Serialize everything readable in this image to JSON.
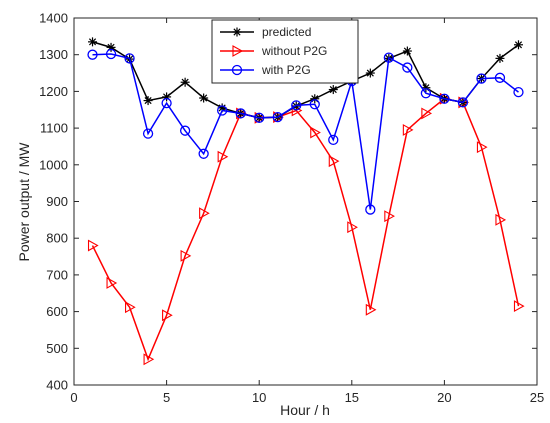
{
  "chart_data": {
    "type": "line",
    "title": "",
    "xlabel": "Hour / h",
    "ylabel": "Power output / MW",
    "xlim": [
      0,
      25
    ],
    "ylim": [
      400,
      1400
    ],
    "xticks": [
      0,
      5,
      10,
      15,
      20,
      25
    ],
    "yticks": [
      400,
      500,
      600,
      700,
      800,
      900,
      1000,
      1100,
      1200,
      1300,
      1400
    ],
    "grid": false,
    "legend_position": "top-center",
    "x": [
      1,
      2,
      3,
      4,
      5,
      6,
      7,
      8,
      9,
      10,
      11,
      12,
      13,
      14,
      15,
      16,
      17,
      18,
      19,
      20,
      21,
      22,
      23,
      24
    ],
    "series": [
      {
        "name": "predicted",
        "color": "#000000",
        "marker": "asterisk",
        "values": [
          1335,
          1320,
          1288,
          1175,
          1185,
          1225,
          1182,
          1155,
          1140,
          1128,
          1130,
          1160,
          1180,
          1205,
          1228,
          1250,
          1290,
          1310,
          1210,
          1180,
          1170,
          1235,
          1290,
          1327
        ]
      },
      {
        "name": "without P2G",
        "color": "#ff0000",
        "marker": "triangle-right",
        "values": [
          780,
          678,
          612,
          470,
          590,
          752,
          868,
          1022,
          1140,
          1128,
          1130,
          1148,
          1088,
          1010,
          830,
          605,
          860,
          1095,
          1140,
          1180,
          1170,
          1048,
          850,
          615
        ]
      },
      {
        "name": "with P2G",
        "color": "#0000ff",
        "marker": "circle",
        "values": [
          1300,
          1302,
          1290,
          1085,
          1168,
          1093,
          1030,
          1148,
          1140,
          1128,
          1130,
          1162,
          1165,
          1068,
          1228,
          878,
          1292,
          1265,
          1195,
          1180,
          1170,
          1235,
          1237,
          1198
        ]
      }
    ]
  }
}
